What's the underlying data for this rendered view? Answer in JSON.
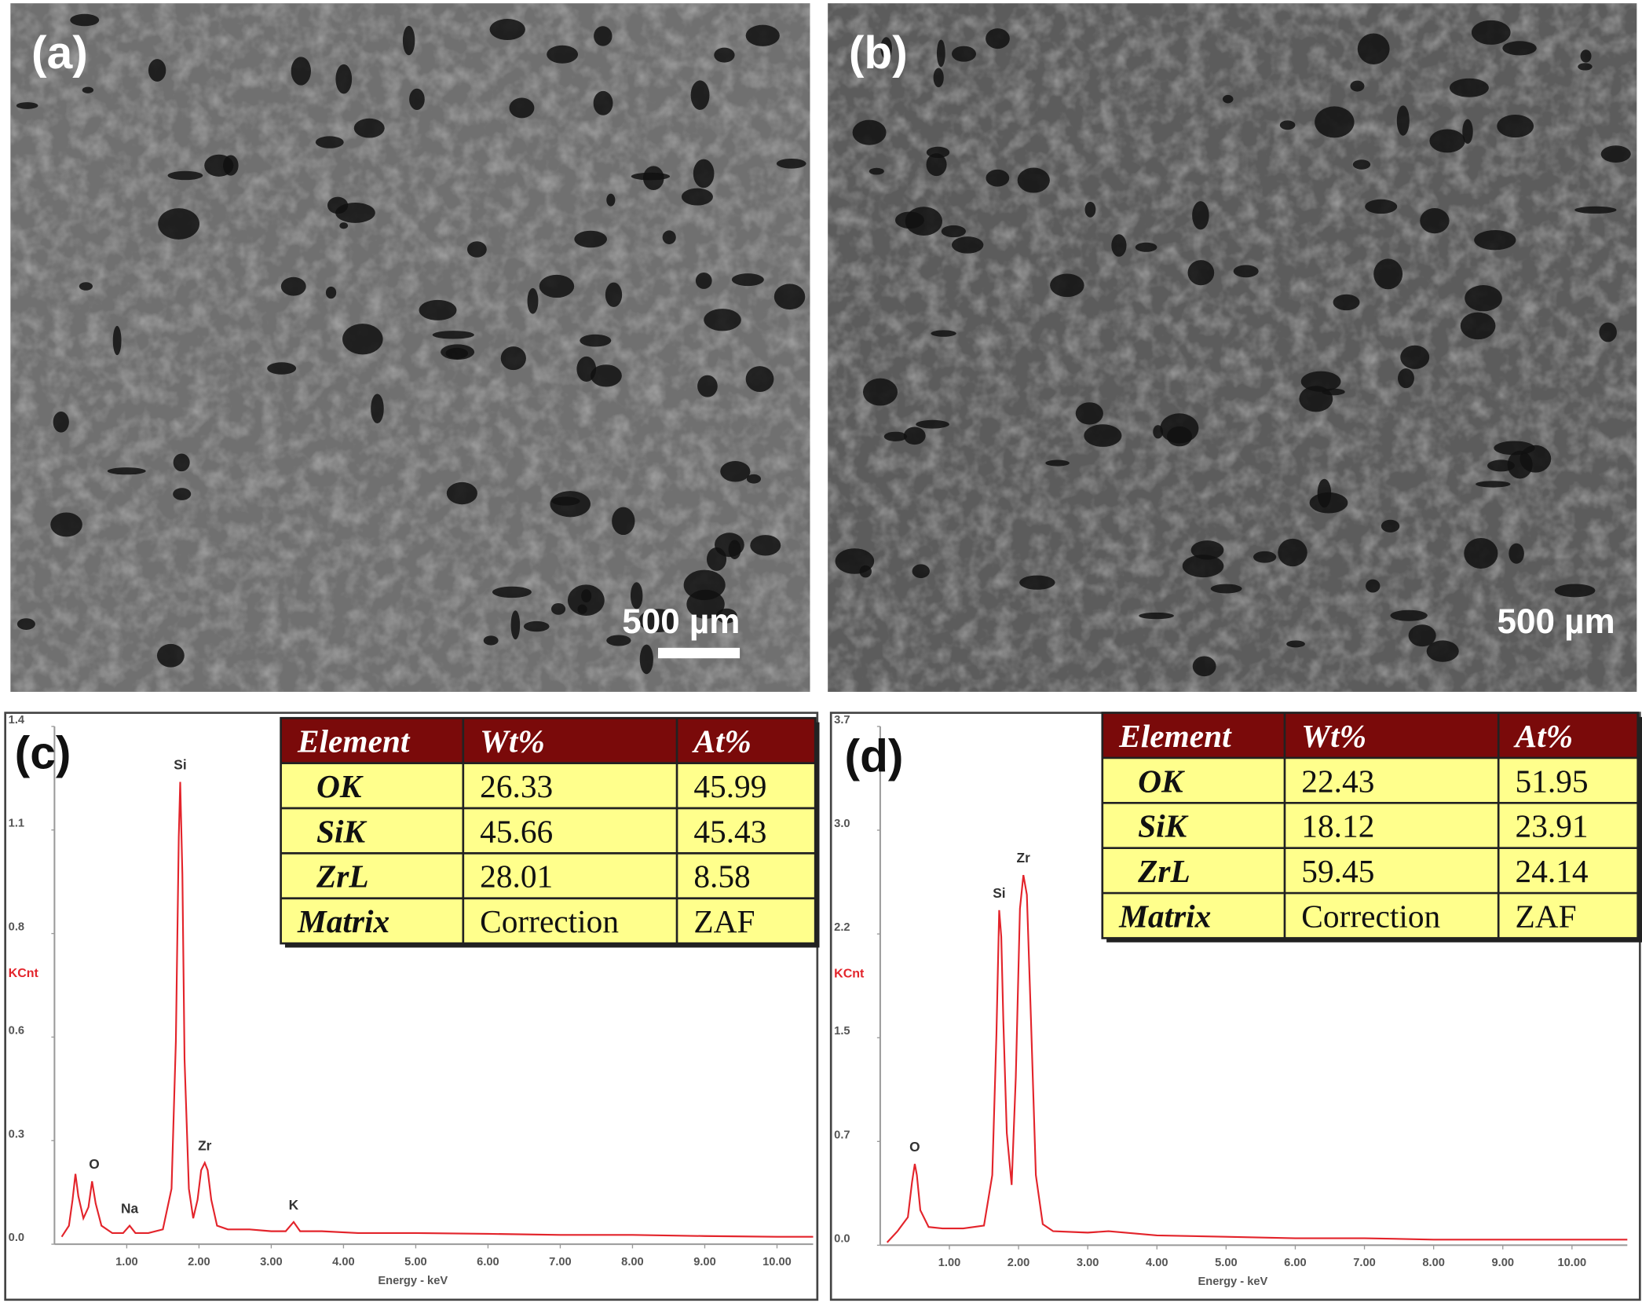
{
  "panels": [
    {
      "label": "(a)",
      "scale_bar": "500 µm"
    },
    {
      "label": "(b)",
      "scale_bar": "500 µm"
    }
  ],
  "chart_data": [
    {
      "type": "line",
      "panel_label": "(c)",
      "x_label": "Energy - keV",
      "y_label": "KCnt",
      "color": "#e3242b",
      "x": [
        0.1,
        0.2,
        0.25,
        0.29,
        0.33,
        0.4,
        0.47,
        0.52,
        0.57,
        0.65,
        0.8,
        0.95,
        1.04,
        1.12,
        1.3,
        1.5,
        1.62,
        1.68,
        1.72,
        1.74,
        1.77,
        1.8,
        1.86,
        1.92,
        1.98,
        2.03,
        2.08,
        2.12,
        2.17,
        2.25,
        2.4,
        2.7,
        3.0,
        3.2,
        3.31,
        3.4,
        3.7,
        4.2,
        5,
        6,
        7,
        8,
        9,
        10,
        10.5
      ],
      "values": [
        0.02,
        0.05,
        0.12,
        0.19,
        0.13,
        0.07,
        0.1,
        0.17,
        0.11,
        0.05,
        0.03,
        0.03,
        0.05,
        0.03,
        0.03,
        0.04,
        0.15,
        0.55,
        1.1,
        1.25,
        1.0,
        0.5,
        0.15,
        0.07,
        0.12,
        0.2,
        0.22,
        0.2,
        0.12,
        0.05,
        0.04,
        0.04,
        0.035,
        0.035,
        0.06,
        0.035,
        0.035,
        0.03,
        0.03,
        0.028,
        0.025,
        0.025,
        0.022,
        0.02,
        0.02
      ],
      "xlim": [
        0,
        10.5
      ],
      "xticks": [
        {
          "value": 1,
          "label": "1.00"
        },
        {
          "value": 2,
          "label": "2.00"
        },
        {
          "value": 3,
          "label": "3.00"
        },
        {
          "value": 4,
          "label": "4.00"
        },
        {
          "value": 5,
          "label": "5.00"
        },
        {
          "value": 6,
          "label": "6.00"
        },
        {
          "value": 7,
          "label": "7.00"
        },
        {
          "value": 8,
          "label": "8.00"
        },
        {
          "value": 9,
          "label": "9.00"
        },
        {
          "value": 10,
          "label": "10.00"
        }
      ],
      "ylim": [
        0,
        1.4
      ],
      "yticks": [
        {
          "value": 0,
          "label": "0.0"
        },
        {
          "value": 0.28,
          "label": "0.3"
        },
        {
          "value": 0.56,
          "label": "0.6"
        },
        {
          "value": 0.84,
          "label": "0.8"
        },
        {
          "value": 1.12,
          "label": "1.1"
        },
        1.4
      ],
      "annotations": [
        {
          "text": "O",
          "x": 0.55,
          "y": 0.17
        },
        {
          "text": "Na",
          "x": 1.04,
          "y": 0.05
        },
        {
          "text": "Si",
          "x": 1.74,
          "y": 1.25
        },
        {
          "text": "Zr",
          "x": 2.08,
          "y": 0.22
        },
        {
          "text": "K",
          "x": 3.31,
          "y": 0.06
        }
      ],
      "table": {
        "header": [
          "Element",
          "Wt%",
          "At%"
        ],
        "rows": [
          [
            "OK",
            "26.33",
            "45.99"
          ],
          [
            "SiK",
            "45.66",
            "45.43"
          ],
          [
            "ZrL",
            "28.01",
            "8.58"
          ],
          [
            "Matrix",
            "Correction",
            "ZAF"
          ]
        ]
      }
    },
    {
      "type": "line",
      "panel_label": "(d)",
      "x_label": "Energy - keV",
      "y_label": "KCnt",
      "color": "#e3242b",
      "x": [
        0.1,
        0.25,
        0.4,
        0.46,
        0.5,
        0.53,
        0.58,
        0.7,
        0.9,
        1.2,
        1.5,
        1.62,
        1.68,
        1.72,
        1.75,
        1.78,
        1.83,
        1.9,
        1.96,
        2.02,
        2.07,
        2.12,
        2.18,
        2.25,
        2.35,
        2.5,
        3,
        3.3,
        4,
        5,
        6,
        7,
        8,
        9,
        10,
        10.8
      ],
      "values": [
        0.02,
        0.1,
        0.2,
        0.45,
        0.58,
        0.5,
        0.25,
        0.13,
        0.12,
        0.12,
        0.14,
        0.5,
        1.5,
        2.39,
        2.2,
        1.6,
        0.8,
        0.43,
        1.2,
        2.4,
        2.64,
        2.5,
        1.6,
        0.5,
        0.15,
        0.1,
        0.09,
        0.1,
        0.07,
        0.06,
        0.05,
        0.05,
        0.04,
        0.04,
        0.04,
        0.04
      ],
      "xlim": [
        0,
        10.8
      ],
      "xticks": [
        {
          "value": 1,
          "label": "1.00"
        },
        {
          "value": 2,
          "label": "2.00"
        },
        {
          "value": 3,
          "label": "3.00"
        },
        {
          "value": 4,
          "label": "4.00"
        },
        {
          "value": 5,
          "label": "5.00"
        },
        {
          "value": 6,
          "label": "6.00"
        },
        {
          "value": 7,
          "label": "7.00"
        },
        {
          "value": 8,
          "label": "8.00"
        },
        {
          "value": 9,
          "label": "9.00"
        },
        {
          "value": 10,
          "label": "10.00"
        }
      ],
      "ylim": [
        0,
        3.7
      ],
      "yticks": [
        {
          "value": 0,
          "label": "0.0"
        },
        {
          "value": 0.74,
          "label": "0.7"
        },
        {
          "value": 1.48,
          "label": "1.5"
        },
        {
          "value": 2.22,
          "label": "2.2"
        },
        {
          "value": 2.96,
          "label": "3.0"
        },
        3.7
      ],
      "annotations": [
        {
          "text": "O",
          "x": 0.5,
          "y": 0.58
        },
        {
          "text": "Si",
          "x": 1.72,
          "y": 2.39
        },
        {
          "text": "Zr",
          "x": 2.07,
          "y": 2.64
        }
      ],
      "table": {
        "header": [
          "Element",
          "Wt%",
          "At%"
        ],
        "rows": [
          [
            "OK",
            "22.43",
            "51.95"
          ],
          [
            "SiK",
            "18.12",
            "23.91"
          ],
          [
            "ZrL",
            "59.45",
            "24.14"
          ],
          [
            "Matrix",
            "Correction",
            "ZAF"
          ]
        ]
      }
    }
  ]
}
